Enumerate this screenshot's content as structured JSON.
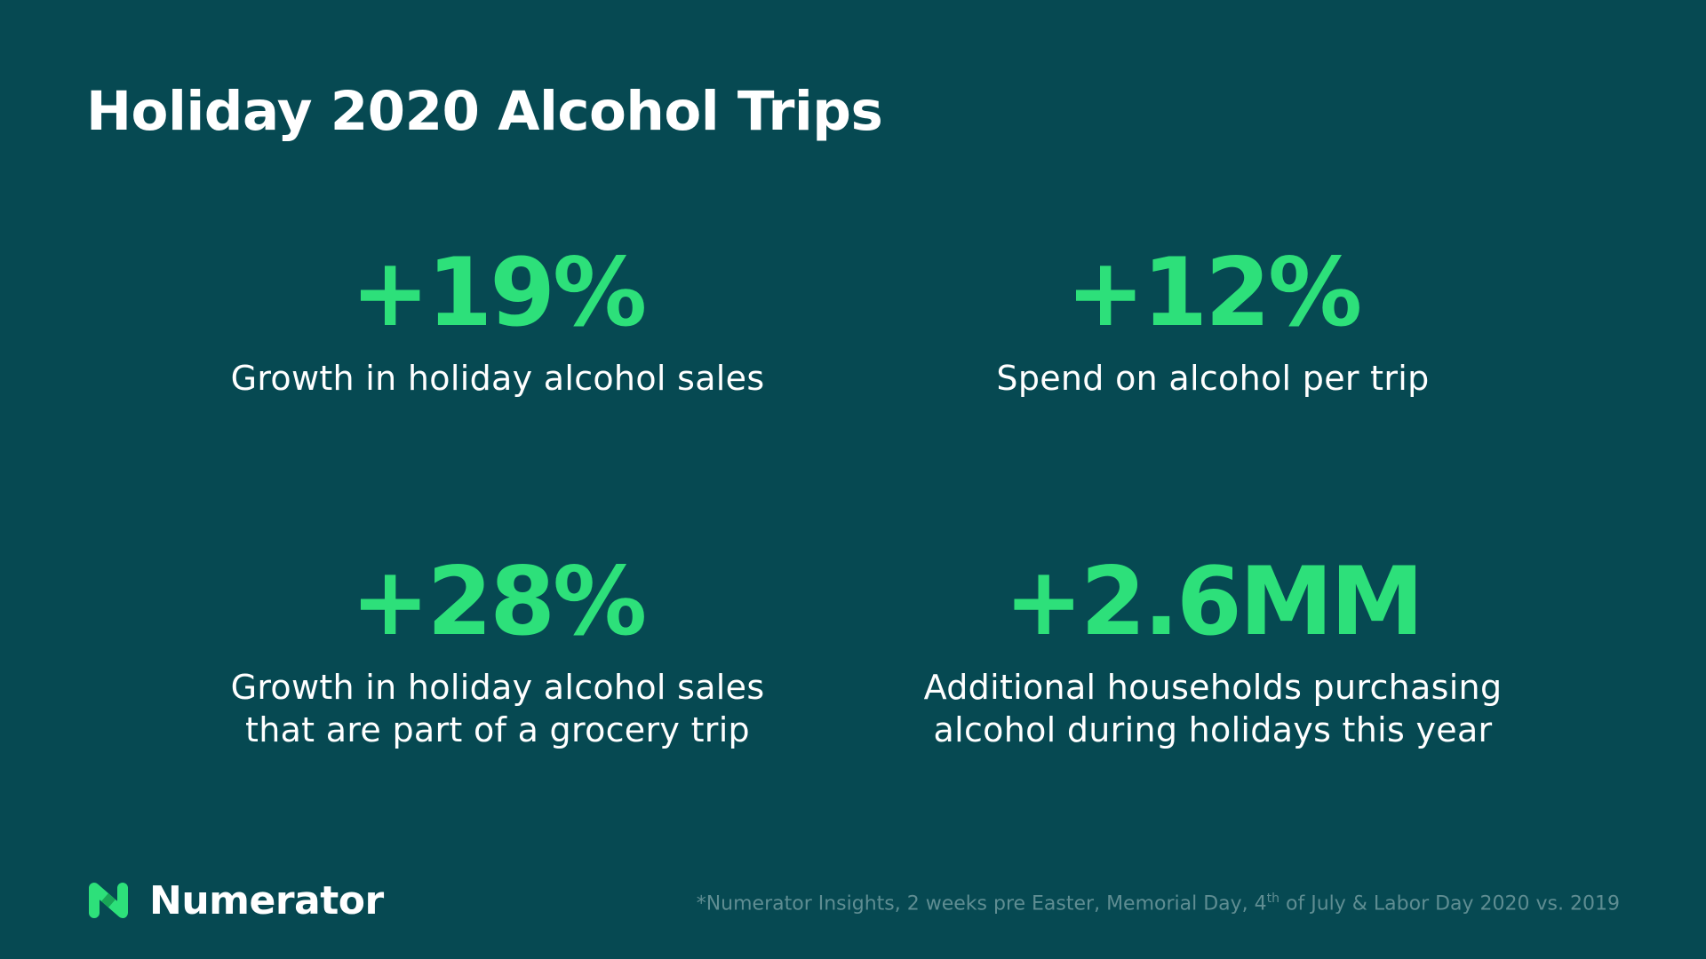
{
  "title": "Holiday 2020 Alcohol Trips",
  "colors": {
    "background": "#064952",
    "accent": "#2de07a",
    "text": "#ffffff",
    "footnote": "#5f8d92"
  },
  "stats": [
    {
      "value": "+19%",
      "description": [
        "Growth in holiday alcohol sales"
      ]
    },
    {
      "value": "+12%",
      "description": [
        "Spend on alcohol per trip"
      ]
    },
    {
      "value": "+28%",
      "description": [
        "Growth in holiday alcohol sales",
        "that are part of a grocery trip"
      ]
    },
    {
      "value": "+2.6MM",
      "description": [
        "Additional households purchasing",
        "alcohol during holidays this year"
      ]
    }
  ],
  "brand": {
    "name": "Numerator",
    "logo_icon": "numerator-logo-icon"
  },
  "footnote": {
    "before": "*Numerator Insights, 2 weeks pre Easter, Memorial Day, 4",
    "superscript": "th",
    "after": " of July & Labor Day 2020 vs. 2019"
  }
}
